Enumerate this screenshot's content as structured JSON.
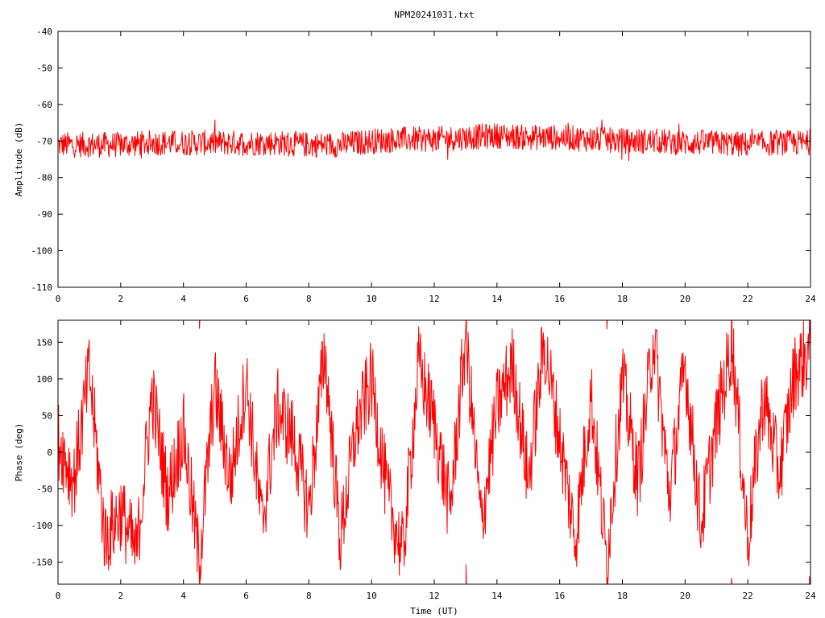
{
  "title": "NPM20241031.txt",
  "colors": {
    "series": "#ff0000",
    "axis": "#000000",
    "background": "#ffffff"
  },
  "chart_data": [
    {
      "type": "line",
      "title": "NPM20241031.txt",
      "xlabel": "",
      "ylabel": "Amplitude (dB)",
      "xlim": [
        0,
        24
      ],
      "ylim": [
        -110,
        -40
      ],
      "xticks": [
        0,
        2,
        4,
        6,
        8,
        10,
        12,
        14,
        16,
        18,
        20,
        22,
        24
      ],
      "yticks": [
        -40,
        -50,
        -60,
        -70,
        -80,
        -90,
        -100,
        -110
      ],
      "xtick_labels": [
        "0",
        "2",
        "4",
        "6",
        "8",
        "10",
        "12",
        "14",
        "16",
        "18",
        "20",
        "22",
        "24"
      ],
      "ytick_labels": [
        "-40",
        "-50",
        "-60",
        "-70",
        "-80",
        "-90",
        "-100",
        "-110"
      ],
      "grid": false,
      "series": [
        {
          "color": "#ff0000",
          "description": "dense noisy trace; center level vs time (UT), band spans about +/-4 dB",
          "x": [
            0,
            1,
            2,
            3,
            4,
            5,
            6,
            7,
            8,
            9,
            10,
            11,
            12,
            13,
            14,
            15,
            16,
            17,
            18,
            19,
            20,
            21,
            22,
            23,
            24
          ],
          "values": [
            -71,
            -71,
            -71,
            -70.5,
            -70.5,
            -70.5,
            -70.5,
            -70.5,
            -71,
            -71,
            -70,
            -69.5,
            -69.5,
            -69,
            -68.5,
            -69,
            -69,
            -69.5,
            -70,
            -70,
            -70.5,
            -70.5,
            -71,
            -70.5,
            -70.5
          ],
          "min": -77.5,
          "max": -63
        }
      ]
    },
    {
      "type": "line",
      "title": "",
      "xlabel": "Time (UT)",
      "ylabel": "Phase (deg)",
      "xlim": [
        0,
        24
      ],
      "ylim": [
        -180,
        180
      ],
      "xticks": [
        0,
        2,
        4,
        6,
        8,
        10,
        12,
        14,
        16,
        18,
        20,
        22,
        24
      ],
      "yticks": [
        150,
        100,
        50,
        0,
        -50,
        -100,
        -150
      ],
      "xtick_labels": [
        "0",
        "2",
        "4",
        "6",
        "8",
        "10",
        "12",
        "14",
        "16",
        "18",
        "20",
        "22",
        "24"
      ],
      "ytick_labels": [
        "150",
        "100",
        "50",
        "0",
        "-50",
        "-100",
        "-150"
      ],
      "grid": false,
      "series": [
        {
          "color": "#ff0000",
          "description": "wrapped phase, dense trace drifting with frequent wraps between -180 and 180",
          "x": [
            0,
            0.5,
            1,
            1.5,
            2,
            2.5,
            3,
            3.5,
            4,
            4.5,
            5,
            5.5,
            6,
            6.5,
            7,
            7.5,
            8,
            8.5,
            9,
            9.5,
            10,
            10.5,
            11,
            11.5,
            12,
            12.5,
            13,
            13.5,
            14,
            14.5,
            15,
            15.5,
            16,
            16.5,
            17,
            17.5,
            18,
            18.5,
            19,
            19.5,
            20,
            20.5,
            21,
            21.5,
            22,
            22.5,
            23,
            23.5,
            24
          ],
          "values": [
            20,
            -40,
            110,
            -120,
            -80,
            -140,
            80,
            -60,
            30,
            -150,
            90,
            -40,
            100,
            -100,
            60,
            20,
            -80,
            140,
            -120,
            30,
            100,
            -60,
            -140,
            120,
            40,
            -80,
            160,
            -100,
            60,
            120,
            -40,
            150,
            20,
            -120,
            80,
            -150,
            100,
            -40,
            160,
            -60,
            120,
            -100,
            40,
            150,
            -120,
            80,
            -30,
            110,
            140
          ],
          "min": -180,
          "max": 180
        }
      ]
    }
  ]
}
